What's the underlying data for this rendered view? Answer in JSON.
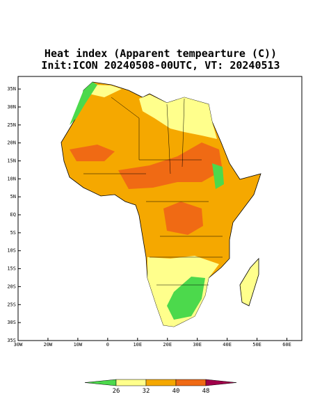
{
  "chart_data": {
    "type": "map",
    "title": "Heat index (Apparent tempearture (C))",
    "subtitle": "Init:ICON 20240508-00UTC, VT: 20240513",
    "xlim": [
      -30,
      65
    ],
    "ylim": [
      -35,
      38.5
    ],
    "xticks": [
      {
        "value": -30,
        "label": "30W"
      },
      {
        "value": -20,
        "label": "20W"
      },
      {
        "value": -10,
        "label": "10W"
      },
      0,
      {
        "value": 10,
        "label": "10E"
      },
      {
        "value": 20,
        "label": "20E"
      },
      {
        "value": 30,
        "label": "30E"
      },
      {
        "value": 40,
        "label": "40E"
      },
      {
        "value": 50,
        "label": "50E"
      },
      {
        "value": 60,
        "label": "60E"
      }
    ],
    "yticks": [
      {
        "value": 35,
        "label": "35N"
      },
      {
        "value": 30,
        "label": "30N"
      },
      {
        "value": 25,
        "label": "25N"
      },
      {
        "value": 20,
        "label": "20N"
      },
      {
        "value": 15,
        "label": "15N"
      },
      {
        "value": 10,
        "label": "10N"
      },
      {
        "value": 5,
        "label": "5N"
      },
      {
        "value": 0,
        "label": "EQ"
      },
      {
        "value": -5,
        "label": "5S"
      },
      {
        "value": -10,
        "label": "10S"
      },
      {
        "value": -15,
        "label": "15S"
      },
      {
        "value": -20,
        "label": "20S"
      },
      {
        "value": -25,
        "label": "25S"
      },
      {
        "value": -30,
        "label": "30S"
      },
      {
        "value": -35,
        "label": "35S"
      }
    ],
    "colorbar": {
      "levels": [
        26,
        32,
        40,
        48
      ],
      "colors": [
        "#4cd94c",
        "#ffff8c",
        "#f5a800",
        "#f06a14",
        "#a0004a"
      ]
    }
  }
}
